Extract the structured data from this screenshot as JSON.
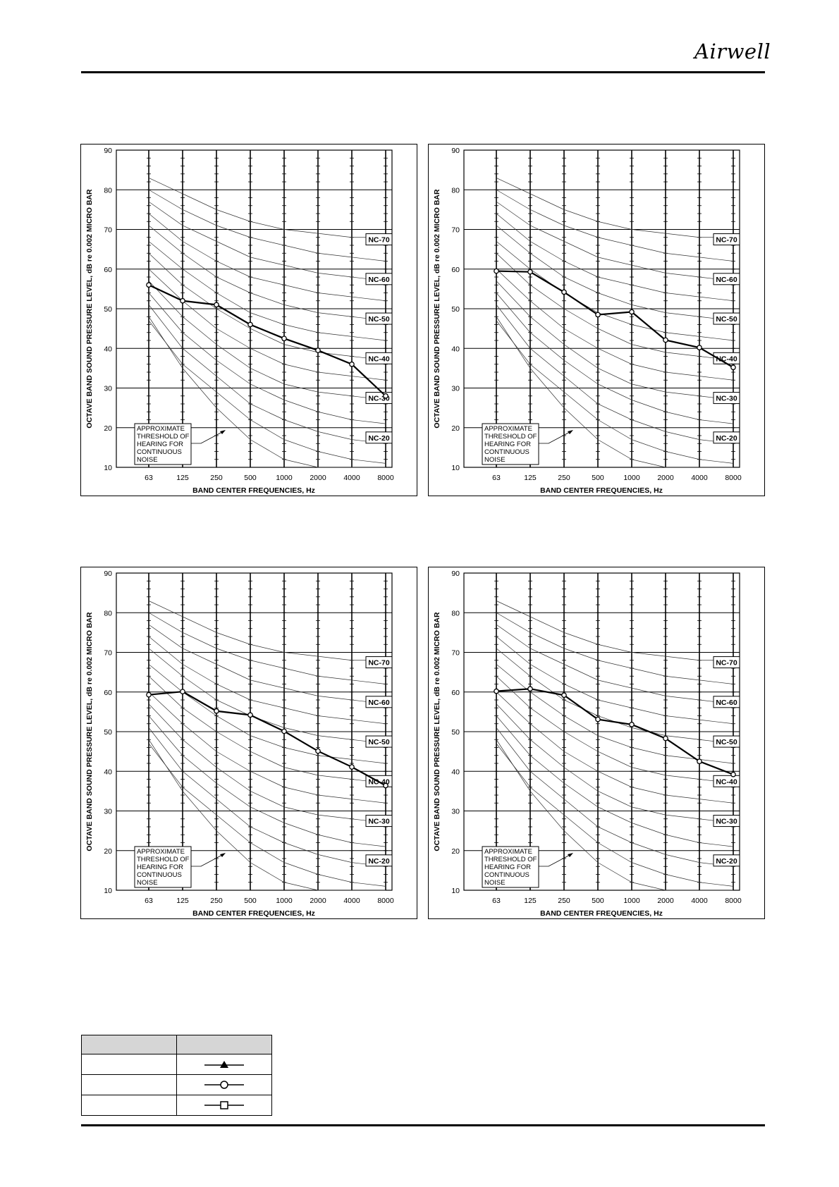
{
  "header": {
    "logo_text": "Airwell"
  },
  "axis_text": {
    "ylabel": "OCTAVE BAND SOUND PRESSURE LEVEL, dB re 0.002 MICRO BAR",
    "xlabel": "BAND CENTER FREQUENCIES, Hz",
    "yticks": [
      "90",
      "80",
      "70",
      "60",
      "50",
      "40",
      "30",
      "20",
      "10"
    ],
    "xticks": [
      "63",
      "125",
      "250",
      "500",
      "1000",
      "2000",
      "4000",
      "8000"
    ],
    "nc_labels": [
      "NC-70",
      "NC-60",
      "NC-50",
      "NC-40",
      "NC-30",
      "NC-20"
    ],
    "threshold_note": [
      "APPROXIMATE",
      "THRESHOLD OF",
      "HEARING FOR",
      "CONTINUOUS",
      "NOISE"
    ]
  },
  "chart_data": [
    {
      "type": "line",
      "x": [
        "63",
        "125",
        "250",
        "500",
        "1000",
        "2000",
        "4000",
        "8000"
      ],
      "ylim": [
        10,
        90
      ],
      "series": [
        {
          "marker": "circle",
          "values": [
            56,
            52,
            51,
            46,
            42.5,
            39.5,
            36,
            28
          ]
        }
      ]
    },
    {
      "type": "line",
      "x": [
        "63",
        "125",
        "250",
        "500",
        "1000",
        "2000",
        "4000",
        "8000"
      ],
      "ylim": [
        10,
        90
      ],
      "series": [
        {
          "marker": "circle",
          "values": [
            59.5,
            59.3,
            54.2,
            48.5,
            49.2,
            42.1,
            40.2,
            35.2
          ]
        }
      ]
    },
    {
      "type": "line",
      "x": [
        "63",
        "125",
        "250",
        "500",
        "1000",
        "2000",
        "4000",
        "8000"
      ],
      "ylim": [
        10,
        90
      ],
      "series": [
        {
          "marker": "circle",
          "values": [
            59.3,
            60.1,
            55.2,
            54.2,
            50.1,
            45.1,
            41.1,
            36.4
          ]
        }
      ]
    },
    {
      "type": "line",
      "x": [
        "63",
        "125",
        "250",
        "500",
        "1000",
        "2000",
        "4000",
        "8000"
      ],
      "ylim": [
        10,
        90
      ],
      "series": [
        {
          "marker": "circle",
          "values": [
            60.2,
            60.8,
            59.2,
            53.1,
            51.8,
            48.3,
            42.5,
            39.2
          ]
        }
      ]
    }
  ],
  "nc_curves": [
    {
      "level": 70,
      "values": [
        83,
        79,
        75,
        72,
        70,
        69,
        68,
        68
      ]
    },
    {
      "level": 65,
      "values": [
        80,
        75,
        71,
        68,
        66,
        64,
        63,
        62
      ]
    },
    {
      "level": 60,
      "values": [
        77,
        71,
        67,
        63,
        61,
        59,
        58,
        57
      ]
    },
    {
      "level": 55,
      "values": [
        74,
        67,
        62,
        58,
        56,
        54,
        53,
        52
      ]
    },
    {
      "level": 50,
      "values": [
        71,
        64,
        58,
        54,
        51,
        49,
        48,
        47
      ]
    },
    {
      "level": 45,
      "values": [
        67,
        60,
        54,
        49,
        46,
        44,
        43,
        42
      ]
    },
    {
      "level": 40,
      "values": [
        64,
        56,
        50,
        45,
        41,
        39,
        38,
        37
      ]
    },
    {
      "level": 35,
      "values": [
        60,
        52,
        45,
        40,
        36,
        34,
        33,
        32
      ]
    },
    {
      "level": 30,
      "values": [
        57,
        48,
        41,
        35,
        31,
        29,
        28,
        27
      ]
    },
    {
      "level": 25,
      "values": [
        54,
        44,
        37,
        31,
        27,
        24,
        22,
        21
      ]
    },
    {
      "level": 20,
      "values": [
        51,
        40,
        33,
        26,
        22,
        19,
        17,
        16
      ]
    },
    {
      "level": 15,
      "values": [
        47,
        36,
        29,
        22,
        17,
        14,
        12,
        11
      ]
    }
  ],
  "threshold_curve": [
    48,
    35,
    25,
    17,
    12,
    10,
    10,
    10
  ],
  "legend": {
    "rows": [
      {
        "label": "",
        "marker": "triangle"
      },
      {
        "label": "",
        "marker": "circle"
      },
      {
        "label": "",
        "marker": "square"
      }
    ]
  }
}
